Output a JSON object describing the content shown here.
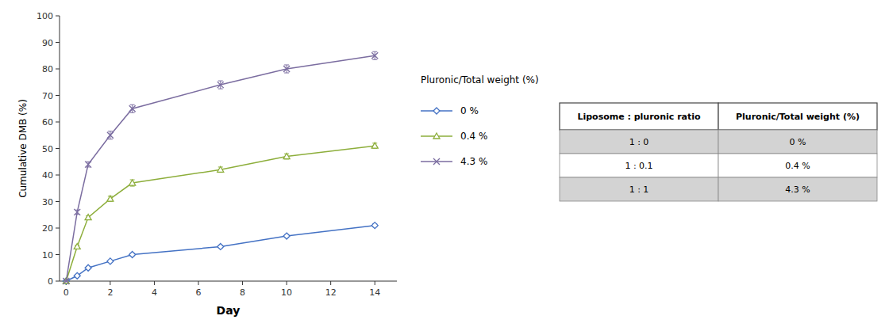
{
  "chart_data": {
    "type": "line",
    "xlabel": "Day",
    "ylabel": "Cumulative DMB (%)",
    "x": [
      0,
      0.5,
      1,
      2,
      3,
      7,
      10,
      14
    ],
    "xlim": [
      -0.3,
      15
    ],
    "ylim": [
      0,
      100
    ],
    "xticks": [
      0,
      2,
      4,
      6,
      8,
      10,
      12,
      14
    ],
    "yticks": [
      0,
      10,
      20,
      30,
      40,
      50,
      60,
      70,
      80,
      90,
      100
    ],
    "grid": false,
    "legend_title": "Pluronic/Total weight (%)",
    "series": [
      {
        "name": "0 %",
        "color": "#4472C4",
        "marker": "diamond",
        "values": [
          0,
          2,
          5,
          7.5,
          10,
          13,
          17,
          21
        ],
        "errors": [
          0,
          0.3,
          0.4,
          0.4,
          0.5,
          0.5,
          0.5,
          0.6
        ]
      },
      {
        "name": "0.4 %",
        "color": "#8DAE3B",
        "marker": "triangle",
        "values": [
          0,
          13,
          24,
          31,
          37,
          42,
          47,
          51
        ],
        "errors": [
          0,
          0.5,
          0.6,
          1.0,
          1.2,
          1.0,
          1.0,
          1.0
        ]
      },
      {
        "name": "4.3 %",
        "color": "#7B6DA0",
        "marker": "x",
        "values": [
          0,
          26,
          44,
          55,
          65,
          74,
          80,
          85
        ],
        "errors": [
          0,
          0.8,
          1.0,
          1.5,
          1.5,
          1.5,
          1.5,
          1.5
        ]
      }
    ],
    "table": {
      "columns": [
        "Liposome : pluronic ratio",
        "Pluronic/Total weight (%)"
      ],
      "rows": [
        [
          "1 : 0",
          "0 %"
        ],
        [
          "1 : 0.1",
          "0.4 %"
        ],
        [
          "1 : 1",
          "4.3 %"
        ]
      ],
      "row_colors": [
        "#D3D3D3",
        "#FFFFFF",
        "#D3D3D3"
      ]
    }
  }
}
